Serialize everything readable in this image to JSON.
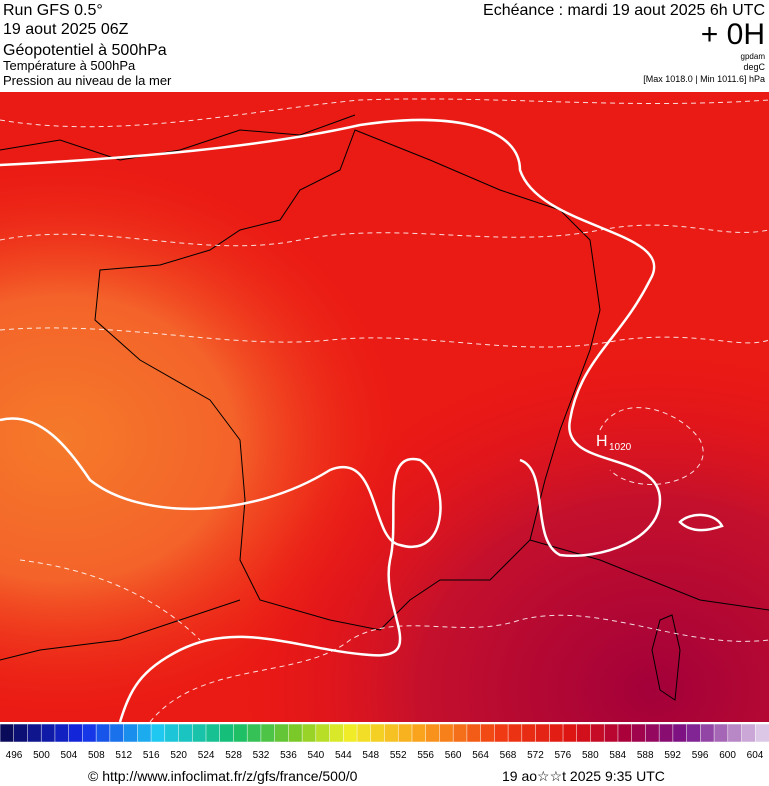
{
  "header": {
    "title": "Run GFS 0.5°",
    "run_date": "19 aout 2025 06Z",
    "field1": "Géopotentiel à 500hPa",
    "field2": "Température à 500hPa",
    "field3": "Pression au niveau de la mer",
    "echeance": "Echéance : mardi 19 aout 2025 6h UTC",
    "lead": "+ 0H",
    "unit1": "gpdam",
    "unit2": "degC",
    "range": "[Max 1018.0 | Min 1011.6] hPa"
  },
  "map": {
    "high_letter": "H",
    "high_value": 1020
  },
  "colorbar": {
    "labels": [
      496,
      500,
      504,
      508,
      512,
      516,
      520,
      524,
      528,
      532,
      536,
      540,
      544,
      548,
      552,
      556,
      560,
      564,
      568,
      572,
      576,
      580,
      584,
      588,
      592,
      596,
      600,
      604
    ]
  },
  "footer": {
    "url": "© http://www.infoclimat.fr/z/gfs/france/500/0",
    "timestamp": "19 ao☆☆t 2025  9:35 UTC"
  }
}
